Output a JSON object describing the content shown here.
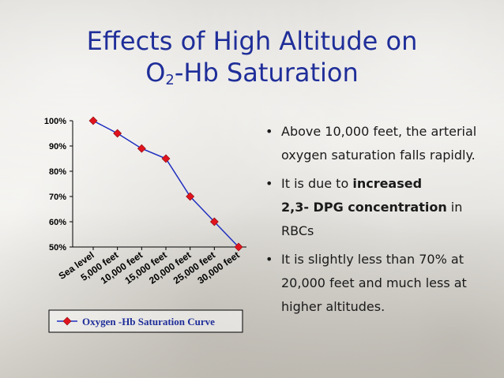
{
  "slide": {
    "title_line1": "Effects of High Altitude on",
    "title_o": "O",
    "title_sub": "2",
    "title_rest": "-Hb Saturation"
  },
  "bullets": [
    {
      "text": "Above 10,000 feet, the arterial oxygen saturation falls rapidly."
    },
    {
      "pre": "It is due to ",
      "bold1": "increased",
      "bold2": "2,3- DPG concentration",
      "post": " in RBCs"
    },
    {
      "text": "It is slightly less than 70% at 20,000 feet and much less at higher altitudes."
    }
  ],
  "chart_data": {
    "type": "line",
    "categories": [
      "Sea level",
      "5,000 feet",
      "10,000 feet",
      "15,000 feet",
      "20,000 feet",
      "25,000 feet",
      "30,000 feet"
    ],
    "series": [
      {
        "name": "Oxygen -Hb Saturation Curve",
        "values": [
          100,
          95,
          89,
          85,
          70,
          60,
          50
        ]
      }
    ],
    "yticks": [
      "100%",
      "90%",
      "80%",
      "70%",
      "60%",
      "50%"
    ],
    "ylim": [
      50,
      100
    ],
    "ytick_values": [
      100,
      90,
      80,
      70,
      60,
      50
    ],
    "grid": false,
    "legend": "bottom",
    "colors": {
      "line": "#1f2ebf",
      "marker": "#e0141e",
      "axis": "#000000"
    }
  }
}
